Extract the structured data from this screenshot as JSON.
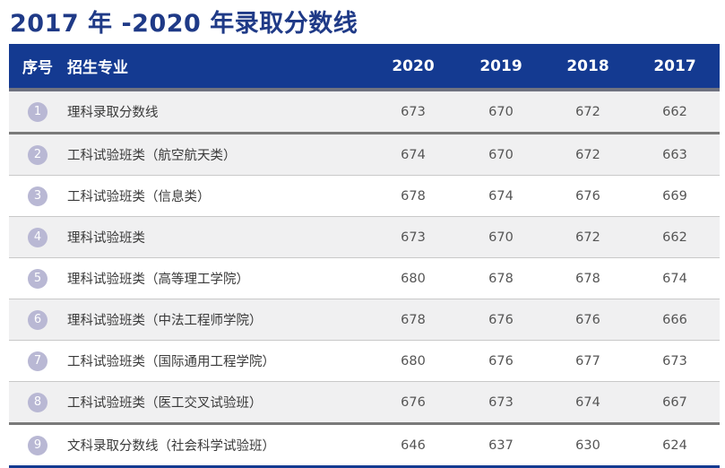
{
  "title": "2017 年 -2020 年录取分数线",
  "header": {
    "num": "序号",
    "name": "招生专业",
    "y2020": "2020",
    "y2019": "2019",
    "y2018": "2018",
    "y2017": "2017"
  },
  "rows": [
    {
      "num": "1",
      "name": "理科录取分数线",
      "y2020": "673",
      "y2019": "670",
      "y2018": "672",
      "y2017": "662"
    },
    {
      "num": "2",
      "name": "工科试验班类（航空航天类）",
      "y2020": "674",
      "y2019": "670",
      "y2018": "672",
      "y2017": "663"
    },
    {
      "num": "3",
      "name": "工科试验班类（信息类）",
      "y2020": "678",
      "y2019": "674",
      "y2018": "676",
      "y2017": "669"
    },
    {
      "num": "4",
      "name": "理科试验班类",
      "y2020": "673",
      "y2019": "670",
      "y2018": "672",
      "y2017": "662"
    },
    {
      "num": "5",
      "name": "理科试验班类（高等理工学院）",
      "y2020": "680",
      "y2019": "678",
      "y2018": "678",
      "y2017": "674"
    },
    {
      "num": "6",
      "name": "理科试验班类（中法工程师学院）",
      "y2020": "678",
      "y2019": "676",
      "y2018": "676",
      "y2017": "666"
    },
    {
      "num": "7",
      "name": "工科试验班类（国际通用工程学院）",
      "y2020": "680",
      "y2019": "676",
      "y2018": "677",
      "y2017": "673"
    },
    {
      "num": "8",
      "name": "工科试验班类（医工交叉试验班）",
      "y2020": "676",
      "y2019": "673",
      "y2018": "674",
      "y2017": "667"
    },
    {
      "num": "9",
      "name": "文科录取分数线（社会科学试验班）",
      "y2020": "646",
      "y2019": "637",
      "y2018": "630",
      "y2017": "624"
    }
  ],
  "colors": {
    "header_bg": "#143a91",
    "title": "#1f3a87",
    "badge": "#b9b8d4",
    "shaded_row": "#f0f0f1"
  }
}
